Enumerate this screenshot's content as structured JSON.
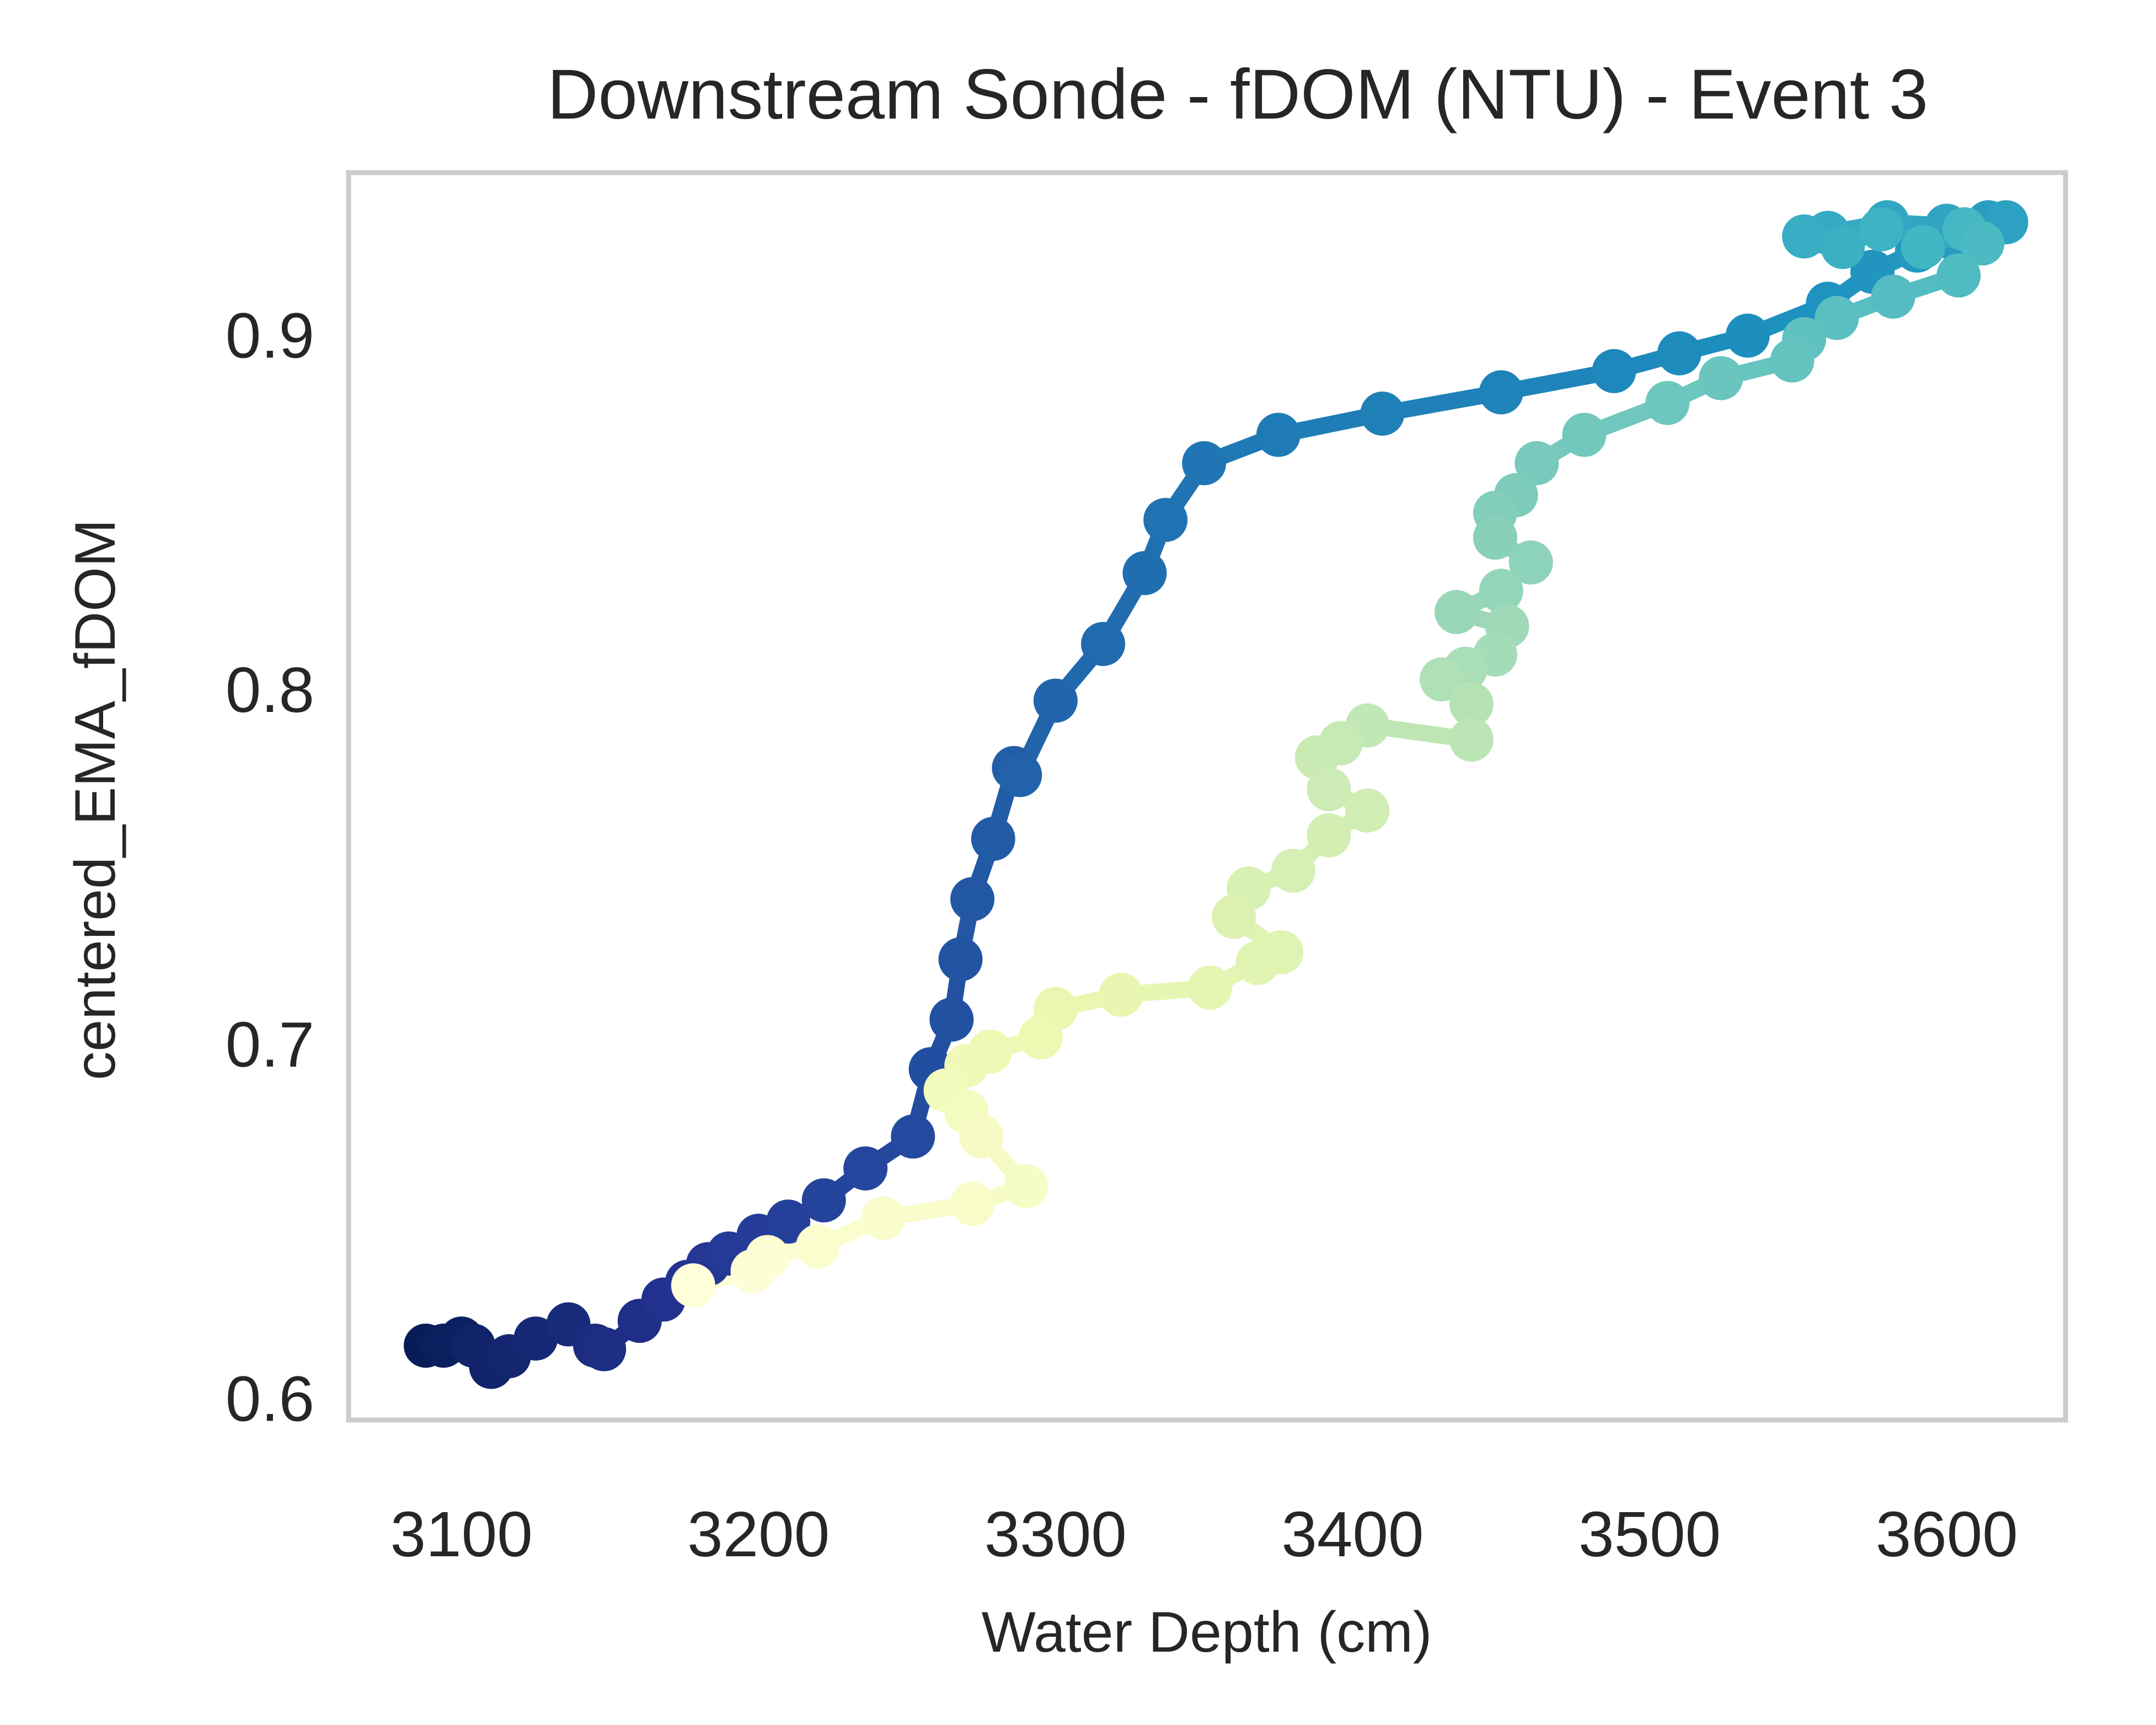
{
  "chart_data": {
    "type": "line",
    "title": "Downstream Sonde - fDOM (NTU) - Event 3",
    "xlabel": "Water Depth (cm)",
    "ylabel": "centered_EMA_fDOM",
    "xlim": [
      3062,
      3640
    ],
    "ylim": [
      0.594,
      0.946
    ],
    "xticks": [
      3100,
      3200,
      3300,
      3400,
      3500,
      3600
    ],
    "yticks": [
      0.6,
      0.7,
      0.8,
      0.9
    ],
    "xtick_labels": [
      "3100",
      "3200",
      "3300",
      "3400",
      "3500",
      "3600"
    ],
    "ytick_labels": [
      "0.6",
      "0.7",
      "0.8",
      "0.9"
    ],
    "grid": false,
    "legend": "none",
    "colormap": "YlGnBu",
    "colormap_stops": [
      "#081d58",
      "#253494",
      "#225ea8",
      "#1d91c0",
      "#41b6c4",
      "#7fcdbb",
      "#c7e9b4",
      "#edf8b1",
      "#ffffd9"
    ],
    "frame_color": "#cccccc",
    "series": [
      {
        "x": [
          3088,
          3094,
          3100,
          3104,
          3110,
          3116,
          3125,
          3136,
          3145,
          3148,
          3160,
          3168,
          3176,
          3183,
          3190,
          3200,
          3210,
          3222,
          3236,
          3252,
          3258,
          3265,
          3268,
          3272,
          3279,
          3286,
          3288,
          3300,
          3316,
          3330,
          3337,
          3350,
          3375,
          3410,
          3450,
          3488,
          3510,
          3533,
          3560,
          3575,
          3590,
          3603,
          3614,
          3620,
          3600,
          3580,
          3560,
          3552,
          3565,
          3578,
          3592,
          3606,
          3612,
          3604,
          3582
        ],
        "y": [
          0.615,
          0.615,
          0.617,
          0.615,
          0.609,
          0.612,
          0.617,
          0.621,
          0.615,
          0.614,
          0.622,
          0.628,
          0.633,
          0.638,
          0.641,
          0.646,
          0.65,
          0.656,
          0.665,
          0.674,
          0.693,
          0.707,
          0.724,
          0.741,
          0.758,
          0.778,
          0.776,
          0.797,
          0.813,
          0.833,
          0.848,
          0.864,
          0.872,
          0.878,
          0.884,
          0.89,
          0.895,
          0.9,
          0.909,
          0.918,
          0.924,
          0.927,
          0.932,
          0.932,
          0.931,
          0.932,
          0.929,
          0.928,
          0.925,
          0.93,
          0.925,
          0.93,
          0.926,
          0.917,
          0.911
        ]
      },
      {
        "x": [
          3563,
          3552,
          3548,
          3524,
          3506,
          3478,
          3462,
          3455,
          3448,
          3448,
          3460,
          3450,
          3435,
          3452,
          3448,
          3438,
          3430,
          3440,
          3440,
          3405,
          3396,
          3388,
          3392,
          3405,
          3392,
          3380,
          3365,
          3360,
          3376,
          3368,
          3352,
          3322,
          3300,
          3295,
          3278,
          3270,
          3263,
          3270,
          3275,
          3290,
          3272,
          3242,
          3220,
          3203,
          3198,
          3178
        ],
        "y": [
          0.905,
          0.899,
          0.893,
          0.888,
          0.881,
          0.872,
          0.864,
          0.855,
          0.85,
          0.843,
          0.836,
          0.828,
          0.822,
          0.818,
          0.81,
          0.806,
          0.803,
          0.796,
          0.786,
          0.79,
          0.785,
          0.781,
          0.772,
          0.766,
          0.759,
          0.749,
          0.744,
          0.736,
          0.726,
          0.723,
          0.716,
          0.714,
          0.71,
          0.702,
          0.698,
          0.694,
          0.687,
          0.681,
          0.674,
          0.66,
          0.655,
          0.651,
          0.643,
          0.64,
          0.636,
          0.632
        ]
      }
    ]
  }
}
